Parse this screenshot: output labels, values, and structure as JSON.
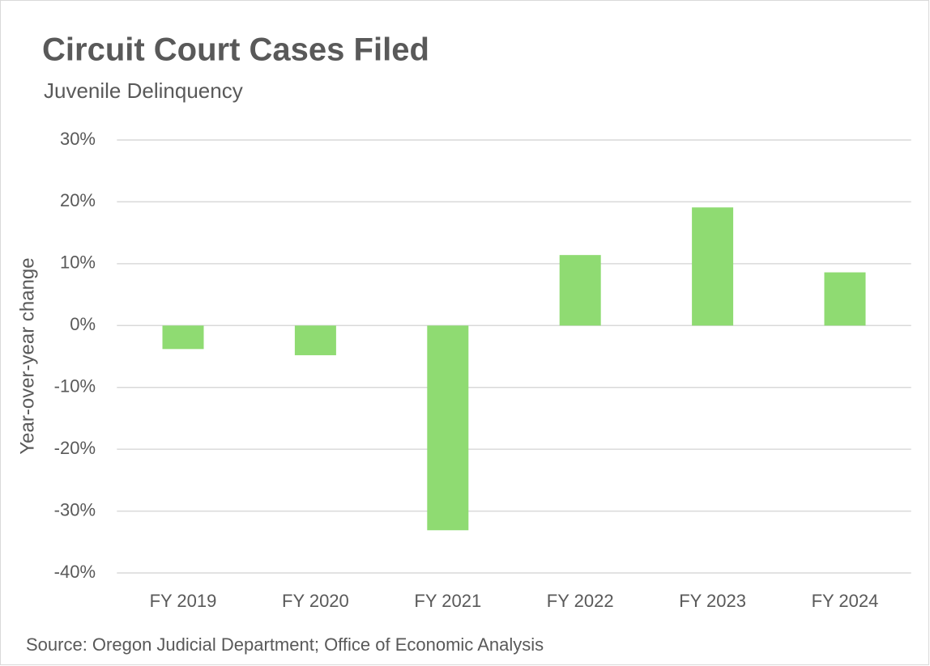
{
  "chart_data": {
    "type": "bar",
    "title": "Circuit Court Cases Filed",
    "subtitle": "Juvenile Delinquency",
    "y_label": "Year-over-year change",
    "source": "Source: Oregon Judicial Department; Office of Economic Analysis",
    "categories": [
      "FY 2019",
      "FY 2020",
      "FY 2021",
      "FY 2022",
      "FY 2023",
      "FY 2024"
    ],
    "values": [
      -3.8,
      -4.8,
      -33.1,
      11.4,
      19.1,
      8.6
    ],
    "color": "#8fdb72",
    "ylim": [
      -40,
      30
    ],
    "yticks": [
      {
        "value": -40,
        "label": "-40%"
      },
      {
        "value": -30,
        "label": "-30%"
      },
      {
        "value": -20,
        "label": "-20%"
      },
      {
        "value": -10,
        "label": "-10%"
      },
      {
        "value": 0,
        "label": "0%"
      },
      {
        "value": 10,
        "label": "10%"
      },
      {
        "value": 20,
        "label": "20%"
      },
      {
        "value": 30,
        "label": "30%"
      }
    ],
    "grid": true
  }
}
